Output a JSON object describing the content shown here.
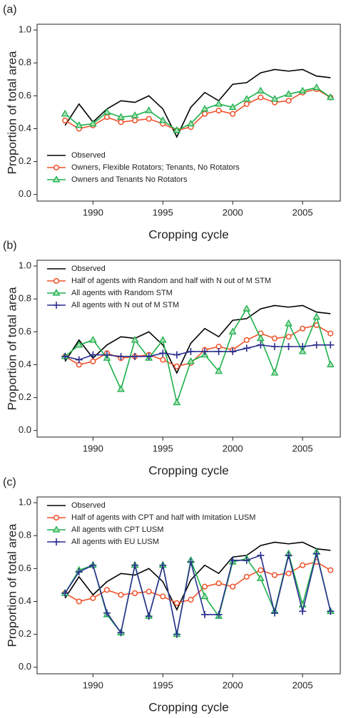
{
  "chart_data": [
    {
      "type": "line",
      "panel_label": "(a)",
      "xlabel": "Cropping cycle",
      "ylabel": "Proportion of total area",
      "x": [
        1988,
        1989,
        1990,
        1991,
        1992,
        1993,
        1994,
        1995,
        1996,
        1997,
        1998,
        1999,
        2000,
        2001,
        2002,
        2003,
        2004,
        2005,
        2006,
        2007
      ],
      "xlim": [
        1986,
        2007.7
      ],
      "xticks": [
        1990,
        1995,
        2000,
        2005
      ],
      "ylim": [
        -0.04,
        1.035
      ],
      "yticks": [
        {
          "value": 0,
          "label": "0.0"
        },
        0.2,
        0.4,
        0.6,
        0.8,
        {
          "value": 1,
          "label": "1.0"
        }
      ],
      "legend": "lower left",
      "series": [
        {
          "name": "Observed",
          "color": "#000000",
          "marker": "none",
          "values": [
            0.42,
            0.55,
            0.44,
            0.52,
            0.57,
            0.56,
            0.6,
            0.52,
            0.35,
            0.53,
            0.62,
            0.57,
            0.67,
            0.68,
            0.74,
            0.76,
            0.75,
            0.76,
            0.72,
            0.71
          ]
        },
        {
          "name": "Owners, Flexible Rotators; Tenants, No Rotators",
          "color": "#f0512a",
          "marker": "circle",
          "values": [
            0.45,
            0.4,
            0.42,
            0.47,
            0.44,
            0.45,
            0.46,
            0.43,
            0.39,
            0.41,
            0.49,
            0.51,
            0.49,
            0.55,
            0.59,
            0.56,
            0.57,
            0.62,
            0.64,
            0.59
          ]
        },
        {
          "name": "Owners and Tenants No Rotators",
          "color": "#1db04b",
          "marker": "triangle",
          "values": [
            0.49,
            0.42,
            0.43,
            0.5,
            0.47,
            0.48,
            0.51,
            0.45,
            0.39,
            0.43,
            0.52,
            0.55,
            0.53,
            0.58,
            0.63,
            0.58,
            0.61,
            0.63,
            0.65,
            0.59
          ]
        }
      ]
    },
    {
      "type": "line",
      "panel_label": "(b)",
      "xlabel": "Cropping cycle",
      "ylabel": "Proportion of total area",
      "x": [
        1988,
        1989,
        1990,
        1991,
        1992,
        1993,
        1994,
        1995,
        1996,
        1997,
        1998,
        1999,
        2000,
        2001,
        2002,
        2003,
        2004,
        2005,
        2006,
        2007
      ],
      "xlim": [
        1986,
        2007.7
      ],
      "xticks": [
        1990,
        1995,
        2000,
        2005
      ],
      "ylim": [
        -0.04,
        1.035
      ],
      "yticks": [
        {
          "value": 0,
          "label": "0.0"
        },
        0.2,
        0.4,
        0.6,
        0.8,
        {
          "value": 1,
          "label": "1.0"
        }
      ],
      "legend": "upper left",
      "series": [
        {
          "name": "Observed",
          "color": "#000000",
          "marker": "none",
          "values": [
            0.42,
            0.55,
            0.44,
            0.52,
            0.57,
            0.56,
            0.6,
            0.52,
            0.35,
            0.53,
            0.62,
            0.57,
            0.67,
            0.68,
            0.74,
            0.76,
            0.75,
            0.76,
            0.72,
            0.71
          ]
        },
        {
          "name": "Half of agents with Random and half with N out of M STM",
          "color": "#f0512a",
          "marker": "circle",
          "values": [
            0.45,
            0.4,
            0.42,
            0.47,
            0.44,
            0.45,
            0.46,
            0.43,
            0.39,
            0.41,
            0.49,
            0.51,
            0.49,
            0.55,
            0.59,
            0.56,
            0.57,
            0.62,
            0.64,
            0.59
          ]
        },
        {
          "name": "All agents with Random STM",
          "color": "#1db04b",
          "marker": "triangle",
          "values": [
            0.45,
            0.52,
            0.55,
            0.44,
            0.25,
            0.55,
            0.44,
            0.55,
            0.17,
            0.42,
            0.46,
            0.36,
            0.6,
            0.74,
            0.56,
            0.35,
            0.65,
            0.48,
            0.69,
            0.4
          ]
        },
        {
          "name": "All agents with N out of M STM",
          "color": "#2b2f8f",
          "marker": "plus",
          "values": [
            0.45,
            0.43,
            0.46,
            0.46,
            0.45,
            0.45,
            0.45,
            0.47,
            0.46,
            0.48,
            0.48,
            0.48,
            0.48,
            0.5,
            0.52,
            0.51,
            0.51,
            0.51,
            0.52,
            0.52
          ]
        }
      ]
    },
    {
      "type": "line",
      "panel_label": "(c)",
      "xlabel": "Cropping cycle",
      "ylabel": "Proportion of total area",
      "x": [
        1988,
        1989,
        1990,
        1991,
        1992,
        1993,
        1994,
        1995,
        1996,
        1997,
        1998,
        1999,
        2000,
        2001,
        2002,
        2003,
        2004,
        2005,
        2006,
        2007
      ],
      "xlim": [
        1986,
        2007.7
      ],
      "xticks": [
        1990,
        1995,
        2000,
        2005
      ],
      "ylim": [
        -0.04,
        1.035
      ],
      "yticks": [
        {
          "value": 0,
          "label": "0.0"
        },
        0.2,
        0.4,
        0.6,
        0.8,
        {
          "value": 1,
          "label": "1.0"
        }
      ],
      "legend": "upper left",
      "series": [
        {
          "name": "Observed",
          "color": "#000000",
          "marker": "none",
          "values": [
            0.42,
            0.55,
            0.44,
            0.52,
            0.57,
            0.56,
            0.6,
            0.52,
            0.35,
            0.53,
            0.62,
            0.57,
            0.67,
            0.68,
            0.74,
            0.76,
            0.75,
            0.76,
            0.72,
            0.71
          ]
        },
        {
          "name": "Half of agents with CPT and half with Imitation LUSM",
          "color": "#f0512a",
          "marker": "circle",
          "values": [
            0.45,
            0.4,
            0.42,
            0.47,
            0.44,
            0.45,
            0.46,
            0.43,
            0.39,
            0.41,
            0.49,
            0.51,
            0.49,
            0.55,
            0.59,
            0.56,
            0.57,
            0.62,
            0.64,
            0.59
          ]
        },
        {
          "name": "All agents with CPT LUSM",
          "color": "#1db04b",
          "marker": "triangle",
          "values": [
            0.45,
            0.59,
            0.62,
            0.32,
            0.21,
            0.62,
            0.31,
            0.62,
            0.2,
            0.65,
            0.43,
            0.31,
            0.64,
            0.66,
            0.54,
            0.34,
            0.69,
            0.38,
            0.7,
            0.34
          ]
        },
        {
          "name": "All agents with EU LUSM",
          "color": "#2b2f8f",
          "marker": "plus",
          "values": [
            0.45,
            0.58,
            0.62,
            0.33,
            0.21,
            0.62,
            0.31,
            0.62,
            0.2,
            0.64,
            0.32,
            0.32,
            0.65,
            0.65,
            0.68,
            0.33,
            0.68,
            0.34,
            0.69,
            0.34
          ]
        }
      ]
    }
  ]
}
